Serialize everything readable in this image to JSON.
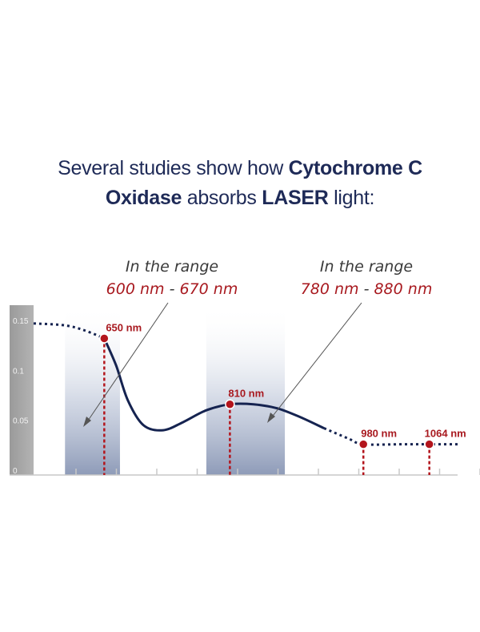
{
  "headline": {
    "line1_plain": "Several studies show how ",
    "line1_bold": "Cytochrome C",
    "line2_bold1": "Oxidase",
    "line2_plain": " absorbs ",
    "line2_bold2": "LASER",
    "line2_end": " light:"
  },
  "annotations": [
    {
      "label": "In the range",
      "from": "600 nm",
      "sep": " - ",
      "to": "670 nm"
    },
    {
      "label": "In the range",
      "from": "780 nm",
      "sep": " - ",
      "to": "880 nm"
    }
  ],
  "colors": {
    "curve": "#152350",
    "marker": "#b3151c",
    "band": "#8e9bb8",
    "axis_panel": "#9e9e9e",
    "text_dark": "#1e2a57",
    "text_red": "#a8191f"
  },
  "chart_data": {
    "type": "line",
    "title": "",
    "xlabel": "",
    "ylabel": "",
    "ylim": [
      0,
      0.15
    ],
    "yticks": [
      "0.15",
      "0.1",
      "0.05",
      "0"
    ],
    "xlim": [
      560,
      1100
    ],
    "series": [
      {
        "x": [
          560,
          600,
          625,
          650,
          665,
          680,
          700,
          725,
          750,
          780,
          810,
          840,
          870,
          900,
          930,
          960,
          980,
          1030,
          1064,
          1100
        ],
        "y": [
          0.147,
          0.145,
          0.14,
          0.132,
          0.105,
          0.07,
          0.045,
          0.04,
          0.048,
          0.06,
          0.066,
          0.066,
          0.062,
          0.053,
          0.042,
          0.032,
          0.026,
          0.026,
          0.026,
          0.026
        ]
      }
    ],
    "markers": [
      {
        "x": 650,
        "y": 0.132,
        "label": "650 nm"
      },
      {
        "x": 810,
        "y": 0.066,
        "label": "810 nm"
      },
      {
        "x": 980,
        "y": 0.026,
        "label": "980 nm"
      },
      {
        "x": 1064,
        "y": 0.026,
        "label": "1064 nm"
      }
    ],
    "bands": [
      {
        "from": 600,
        "to": 670
      },
      {
        "from": 780,
        "to": 880
      }
    ]
  }
}
